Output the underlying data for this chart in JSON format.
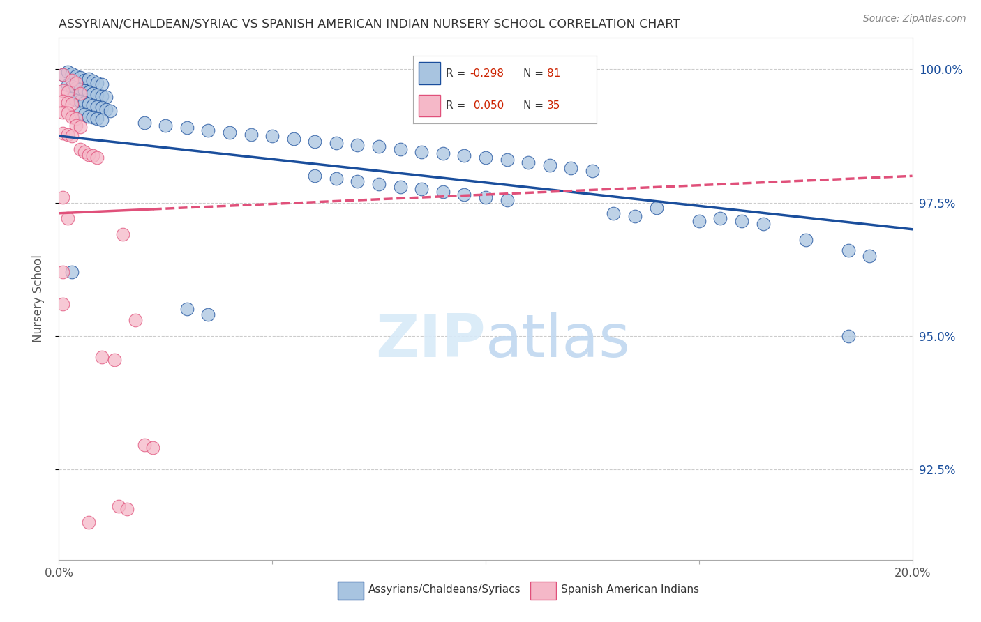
{
  "title": "ASSYRIAN/CHALDEAN/SYRIAC VS SPANISH AMERICAN INDIAN NURSERY SCHOOL CORRELATION CHART",
  "source_text": "Source: ZipAtlas.com",
  "xlabel_blue": "Assyrians/Chaldeans/Syriacs",
  "xlabel_pink": "Spanish American Indians",
  "ylabel": "Nursery School",
  "xlim": [
    0.0,
    0.2
  ],
  "ylim": [
    0.908,
    1.006
  ],
  "xticks": [
    0.0,
    0.05,
    0.1,
    0.15,
    0.2
  ],
  "xtick_labels": [
    "0.0%",
    "",
    "",
    "",
    "20.0%"
  ],
  "ytick_labels_right": [
    "100.0%",
    "97.5%",
    "95.0%",
    "92.5%"
  ],
  "yticks_right": [
    1.0,
    0.975,
    0.95,
    0.925
  ],
  "blue_color": "#a8c4e0",
  "blue_line_color": "#1a4e9c",
  "pink_color": "#f5b8c8",
  "pink_line_color": "#e0507a",
  "blue_scatter": [
    [
      0.001,
      0.999
    ],
    [
      0.002,
      0.9995
    ],
    [
      0.003,
      0.9992
    ],
    [
      0.004,
      0.9988
    ],
    [
      0.005,
      0.9985
    ],
    [
      0.006,
      0.998
    ],
    [
      0.007,
      0.9982
    ],
    [
      0.008,
      0.9978
    ],
    [
      0.009,
      0.9975
    ],
    [
      0.01,
      0.9972
    ],
    [
      0.002,
      0.997
    ],
    [
      0.003,
      0.9968
    ],
    [
      0.004,
      0.9965
    ],
    [
      0.005,
      0.9962
    ],
    [
      0.006,
      0.996
    ],
    [
      0.007,
      0.9958
    ],
    [
      0.008,
      0.9955
    ],
    [
      0.009,
      0.9952
    ],
    [
      0.01,
      0.995
    ],
    [
      0.011,
      0.9948
    ],
    [
      0.003,
      0.9945
    ],
    [
      0.004,
      0.9942
    ],
    [
      0.005,
      0.994
    ],
    [
      0.006,
      0.9938
    ],
    [
      0.007,
      0.9935
    ],
    [
      0.008,
      0.9932
    ],
    [
      0.009,
      0.993
    ],
    [
      0.01,
      0.9928
    ],
    [
      0.011,
      0.9925
    ],
    [
      0.012,
      0.9922
    ],
    [
      0.005,
      0.9918
    ],
    [
      0.006,
      0.9915
    ],
    [
      0.007,
      0.9912
    ],
    [
      0.008,
      0.991
    ],
    [
      0.009,
      0.9908
    ],
    [
      0.01,
      0.9905
    ],
    [
      0.02,
      0.99
    ],
    [
      0.025,
      0.9895
    ],
    [
      0.03,
      0.989
    ],
    [
      0.035,
      0.9885
    ],
    [
      0.04,
      0.9882
    ],
    [
      0.045,
      0.9878
    ],
    [
      0.05,
      0.9875
    ],
    [
      0.055,
      0.987
    ],
    [
      0.06,
      0.9865
    ],
    [
      0.065,
      0.9862
    ],
    [
      0.07,
      0.9858
    ],
    [
      0.075,
      0.9855
    ],
    [
      0.08,
      0.985
    ],
    [
      0.085,
      0.9845
    ],
    [
      0.09,
      0.9842
    ],
    [
      0.095,
      0.9838
    ],
    [
      0.1,
      0.9835
    ],
    [
      0.105,
      0.983
    ],
    [
      0.11,
      0.9825
    ],
    [
      0.115,
      0.982
    ],
    [
      0.12,
      0.9815
    ],
    [
      0.125,
      0.981
    ],
    [
      0.06,
      0.98
    ],
    [
      0.065,
      0.9795
    ],
    [
      0.07,
      0.979
    ],
    [
      0.075,
      0.9785
    ],
    [
      0.08,
      0.978
    ],
    [
      0.085,
      0.9775
    ],
    [
      0.09,
      0.977
    ],
    [
      0.095,
      0.9765
    ],
    [
      0.1,
      0.976
    ],
    [
      0.105,
      0.9755
    ],
    [
      0.14,
      0.974
    ],
    [
      0.155,
      0.972
    ],
    [
      0.16,
      0.9715
    ],
    [
      0.165,
      0.971
    ],
    [
      0.175,
      0.968
    ],
    [
      0.185,
      0.966
    ],
    [
      0.19,
      0.965
    ],
    [
      0.03,
      0.955
    ],
    [
      0.035,
      0.954
    ],
    [
      0.003,
      0.962
    ],
    [
      0.185,
      0.95
    ],
    [
      0.13,
      0.973
    ],
    [
      0.135,
      0.9725
    ],
    [
      0.15,
      0.9715
    ]
  ],
  "pink_scatter": [
    [
      0.001,
      0.999
    ],
    [
      0.003,
      0.998
    ],
    [
      0.004,
      0.9975
    ],
    [
      0.001,
      0.996
    ],
    [
      0.002,
      0.9958
    ],
    [
      0.005,
      0.9955
    ],
    [
      0.001,
      0.994
    ],
    [
      0.002,
      0.9938
    ],
    [
      0.003,
      0.9935
    ],
    [
      0.001,
      0.992
    ],
    [
      0.002,
      0.9918
    ],
    [
      0.003,
      0.991
    ],
    [
      0.004,
      0.9908
    ],
    [
      0.004,
      0.9895
    ],
    [
      0.005,
      0.9892
    ],
    [
      0.001,
      0.988
    ],
    [
      0.002,
      0.9878
    ],
    [
      0.003,
      0.9875
    ],
    [
      0.005,
      0.985
    ],
    [
      0.006,
      0.9845
    ],
    [
      0.007,
      0.984
    ],
    [
      0.008,
      0.9838
    ],
    [
      0.009,
      0.9835
    ],
    [
      0.001,
      0.976
    ],
    [
      0.002,
      0.972
    ],
    [
      0.015,
      0.969
    ],
    [
      0.001,
      0.962
    ],
    [
      0.001,
      0.956
    ],
    [
      0.018,
      0.953
    ],
    [
      0.01,
      0.946
    ],
    [
      0.013,
      0.9455
    ],
    [
      0.02,
      0.9295
    ],
    [
      0.022,
      0.929
    ],
    [
      0.014,
      0.918
    ],
    [
      0.016,
      0.9175
    ],
    [
      0.007,
      0.915
    ]
  ],
  "blue_trendline": [
    [
      0.0,
      0.9875
    ],
    [
      0.2,
      0.97
    ]
  ],
  "pink_trendline": [
    [
      0.0,
      0.973
    ],
    [
      0.2,
      0.98
    ]
  ]
}
